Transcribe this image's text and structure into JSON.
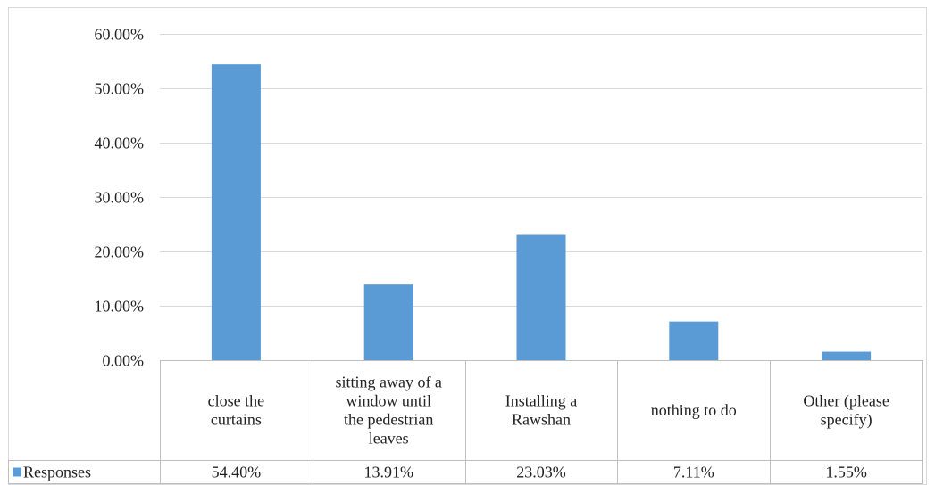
{
  "chart_data": {
    "type": "bar",
    "categories": [
      "close the curtains",
      "sitting away of a window until the pedestrian leaves",
      "Installing a Rawshan",
      "nothing to do",
      "Other (please specify)"
    ],
    "category_label_lines": [
      [
        "close the",
        "curtains"
      ],
      [
        "sitting away of a",
        "window until",
        "the pedestrian",
        "leaves"
      ],
      [
        "Installing a",
        "Rawshan"
      ],
      [
        "nothing to do"
      ],
      [
        "Other (please",
        "specify)"
      ]
    ],
    "series": [
      {
        "name": "Responses",
        "values": [
          54.4,
          13.91,
          23.03,
          7.11,
          1.55
        ],
        "labels": [
          "54.40%",
          "13.91%",
          "23.03%",
          "7.11%",
          "1.55%"
        ],
        "color": "#5b9bd5"
      }
    ],
    "yticks": [
      "0.00%",
      "10.00%",
      "20.00%",
      "30.00%",
      "40.00%",
      "50.00%",
      "60.00%"
    ],
    "ylim": [
      0,
      60
    ],
    "grid": true,
    "legend": "data-table",
    "gridColor": "#d9d9d9",
    "tableColor": "#bfbfbf"
  }
}
